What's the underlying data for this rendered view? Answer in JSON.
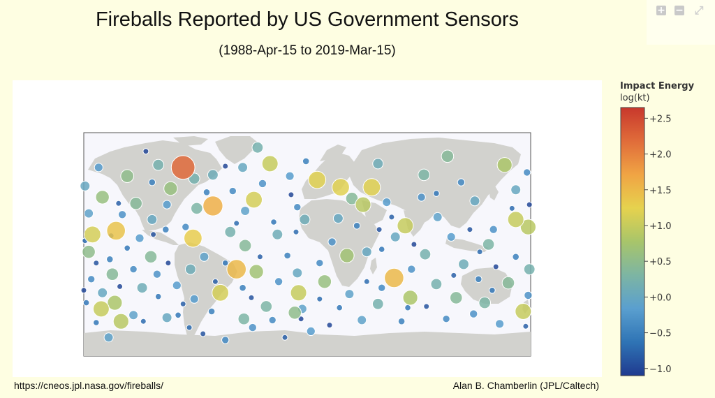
{
  "header": {
    "title": "Fireballs Reported by US Government Sensors",
    "subtitle": "(1988-Apr-15 to 2019-Mar-15)"
  },
  "toolbar": {
    "zoom_in_icon": "plus-square-icon",
    "zoom_out_icon": "minus-square-icon",
    "reset_icon": "expand-arrows-icon"
  },
  "colorbar": {
    "title": "Impact Energy",
    "unit": "log(kt)",
    "ticks": [
      "+2.5",
      "+2.0",
      "+1.5",
      "+1.0",
      "+0.5",
      "+0.0",
      "−0.5",
      "−1.0"
    ],
    "tick_values": [
      2.5,
      2.0,
      1.5,
      1.0,
      0.5,
      0.0,
      -0.5,
      -1.0
    ],
    "range": [
      -1.1,
      2.65
    ],
    "colors": [
      "#1f3a8f",
      "#2f74b5",
      "#5a9fcf",
      "#7db5a3",
      "#a8c56a",
      "#e6d24e",
      "#f0a444",
      "#e06c3a",
      "#c8382c"
    ]
  },
  "map": {
    "ocean_color": "#f7f7fc",
    "land_color": "#d2d2ce",
    "fireballs": [
      {
        "lon": -100,
        "lat": 62,
        "e": 2.2
      },
      {
        "lon": -76,
        "lat": 31,
        "e": 1.6
      },
      {
        "lon": -57,
        "lat": -20,
        "e": 1.5
      },
      {
        "lon": 70,
        "lat": -27,
        "e": 1.5
      },
      {
        "lon": -154,
        "lat": 11,
        "e": 1.4
      },
      {
        "lon": -92,
        "lat": 5,
        "e": 1.3
      },
      {
        "lon": -173,
        "lat": 8,
        "e": 1.1
      },
      {
        "lon": -43,
        "lat": 36,
        "e": 1.1
      },
      {
        "lon": -7,
        "lat": -39,
        "e": 1.0
      },
      {
        "lon": 174,
        "lat": -54,
        "e": 1.0
      },
      {
        "lon": 27,
        "lat": 46,
        "e": 1.2
      },
      {
        "lon": -70,
        "lat": -39,
        "e": 1.1
      },
      {
        "lon": 168,
        "lat": 20,
        "e": 1.0
      },
      {
        "lon": 52,
        "lat": 46,
        "e": 1.2
      },
      {
        "lon": -30,
        "lat": 65,
        "e": 1.0
      },
      {
        "lon": -150,
        "lat": -62,
        "e": 0.9
      },
      {
        "lon": 159,
        "lat": 64,
        "e": 0.8
      },
      {
        "lon": 8,
        "lat": 52,
        "e": 1.2
      },
      {
        "lon": -166,
        "lat": -52,
        "e": 1.0
      },
      {
        "lon": 14,
        "lat": -30,
        "e": 0.6
      },
      {
        "lon": 45,
        "lat": 32,
        "e": 0.9
      },
      {
        "lon": 79,
        "lat": 15,
        "e": 1.0
      },
      {
        "lon": -110,
        "lat": 45,
        "e": 0.6
      },
      {
        "lon": -10,
        "lat": -55,
        "e": 0.5
      },
      {
        "lon": 83,
        "lat": -43,
        "e": 0.8
      },
      {
        "lon": -155,
        "lat": -47,
        "e": 0.8
      },
      {
        "lon": 32,
        "lat": -9,
        "e": 0.7
      },
      {
        "lon": -41,
        "lat": -22,
        "e": 0.7
      },
      {
        "lon": 178,
        "lat": 14,
        "e": 0.9
      },
      {
        "lon": -165,
        "lat": 38,
        "e": 0.6
      },
      {
        "lon": -145,
        "lat": 55,
        "e": 0.5
      },
      {
        "lon": 113,
        "lat": 71,
        "e": 0.4
      },
      {
        "lon": 146,
        "lat": 0,
        "e": 0.3
      },
      {
        "lon": -89,
        "lat": 29,
        "e": 0.3
      },
      {
        "lon": -176,
        "lat": -6,
        "e": 0.5
      },
      {
        "lon": 162,
        "lat": -31,
        "e": 0.4
      },
      {
        "lon": -51,
        "lat": -60,
        "e": 0.3
      },
      {
        "lon": 36,
        "lat": 37,
        "e": 0.4
      },
      {
        "lon": -138,
        "lat": 33,
        "e": 0.4
      },
      {
        "lon": -50,
        "lat": -1,
        "e": 0.4
      },
      {
        "lon": 120,
        "lat": -43,
        "e": 0.4
      },
      {
        "lon": 94,
        "lat": 56,
        "e": 0.3
      },
      {
        "lon": -126,
        "lat": -10,
        "e": 0.4
      },
      {
        "lon": -33,
        "lat": -50,
        "e": 0.3
      },
      {
        "lon": -157,
        "lat": -24,
        "e": 0.4
      },
      {
        "lon": 143,
        "lat": -47,
        "e": 0.3
      },
      {
        "lon": 95,
        "lat": -8,
        "e": 0.2
      },
      {
        "lon": -62,
        "lat": 10,
        "e": 0.2
      },
      {
        "lon": 57,
        "lat": -48,
        "e": 0.2
      },
      {
        "lon": 104,
        "lat": -32,
        "e": 0.2
      },
      {
        "lon": -120,
        "lat": 64,
        "e": 0.2
      },
      {
        "lon": -91,
        "lat": 53,
        "e": 0.2
      },
      {
        "lon": -2,
        "lat": 20,
        "e": 0.1
      },
      {
        "lon": -40,
        "lat": 78,
        "e": 0.2
      },
      {
        "lon": -76,
        "lat": 56,
        "e": 0.1
      },
      {
        "lon": 57,
        "lat": 65,
        "e": 0.1
      },
      {
        "lon": 179,
        "lat": -20,
        "e": 0.2
      },
      {
        "lon": -94,
        "lat": -20,
        "e": 0.1
      },
      {
        "lon": -133,
        "lat": -35,
        "e": 0.1
      },
      {
        "lon": -24,
        "lat": 8,
        "e": 0.1
      },
      {
        "lon": 126,
        "lat": -16,
        "e": 0.1
      },
      {
        "lon": 25,
        "lat": 21,
        "e": 0.0
      },
      {
        "lon": -125,
        "lat": 20,
        "e": 0.0
      },
      {
        "lon": -165,
        "lat": -39,
        "e": 0.0
      },
      {
        "lon": -113,
        "lat": -59,
        "e": 0.0
      },
      {
        "lon": -8,
        "lat": -23,
        "e": 0.0
      },
      {
        "lon": 71,
        "lat": 6,
        "e": 0.0
      },
      {
        "lon": 135,
        "lat": 35,
        "e": 0.0
      },
      {
        "lon": -52,
        "lat": 62,
        "e": 0.0
      },
      {
        "lon": 168,
        "lat": 44,
        "e": 0.0
      },
      {
        "lon": -179,
        "lat": 47,
        "e": 0.0
      },
      {
        "lon": 48,
        "lat": -6,
        "e": 0.0
      },
      {
        "lon": -4,
        "lat": -52,
        "e": -0.1
      },
      {
        "lon": -140,
        "lat": -57,
        "e": -0.1
      },
      {
        "lon": -83,
        "lat": -10,
        "e": -0.1
      },
      {
        "lon": 105,
        "lat": 22,
        "e": -0.1
      },
      {
        "lon": -160,
        "lat": -75,
        "e": -0.1
      },
      {
        "lon": 34,
        "lat": -40,
        "e": -0.1
      },
      {
        "lon": -176,
        "lat": 25,
        "e": -0.1
      },
      {
        "lon": -50,
        "lat": 27,
        "e": -0.1
      },
      {
        "lon": 44,
        "lat": -61,
        "e": -0.1
      },
      {
        "lon": -113,
        "lat": 32,
        "e": -0.2
      },
      {
        "lon": 116,
        "lat": 6,
        "e": -0.2
      },
      {
        "lon": -105,
        "lat": -33,
        "e": -0.2
      },
      {
        "lon": 3,
        "lat": -70,
        "e": -0.2
      },
      {
        "lon": 155,
        "lat": -64,
        "e": -0.2
      },
      {
        "lon": 64,
        "lat": 34,
        "e": -0.2
      },
      {
        "lon": -135,
        "lat": 5,
        "e": -0.2
      },
      {
        "lon": -14,
        "lat": 55,
        "e": -0.2
      },
      {
        "lon": -168,
        "lat": 62,
        "e": -0.2
      },
      {
        "lon": -91,
        "lat": -44,
        "e": -0.2
      },
      {
        "lon": -23,
        "lat": -30,
        "e": -0.3
      },
      {
        "lon": 178,
        "lat": -41,
        "e": -0.3
      },
      {
        "lon": -44,
        "lat": -67,
        "e": -0.3
      },
      {
        "lon": 84,
        "lat": -20,
        "e": -0.3
      },
      {
        "lon": -121,
        "lat": -24,
        "e": -0.3
      },
      {
        "lon": 20,
        "lat": 2,
        "e": -0.3
      },
      {
        "lon": -149,
        "lat": 24,
        "e": -0.3
      },
      {
        "lon": 134,
        "lat": -56,
        "e": -0.3
      },
      {
        "lon": 150,
        "lat": 12,
        "e": -0.3
      },
      {
        "lon": -36,
        "lat": 49,
        "e": -0.3
      },
      {
        "lon": 92,
        "lat": 38,
        "e": -0.3
      },
      {
        "lon": -66,
        "lat": -77,
        "e": -0.4
      },
      {
        "lon": -8,
        "lat": 30,
        "e": -0.4
      },
      {
        "lon": -174,
        "lat": -28,
        "e": -0.4
      },
      {
        "lon": 60,
        "lat": -35,
        "e": -0.4
      },
      {
        "lon": -98,
        "lat": 14,
        "e": -0.4
      },
      {
        "lon": 124,
        "lat": 50,
        "e": -0.4
      },
      {
        "lon": -60,
        "lat": 43,
        "e": -0.4
      },
      {
        "lon": -140,
        "lat": -20,
        "e": -0.4
      },
      {
        "lon": 10,
        "lat": -15,
        "e": -0.4
      },
      {
        "lon": 177,
        "lat": 58,
        "e": -0.4
      },
      {
        "lon": -28,
        "lat": -61,
        "e": -0.4
      },
      {
        "lon": 112,
        "lat": -60,
        "e": -0.4
      },
      {
        "lon": -125,
        "lat": 50,
        "e": -0.5
      },
      {
        "lon": 40,
        "lat": 15,
        "e": -0.5
      },
      {
        "lon": -77,
        "lat": -54,
        "e": -0.5
      },
      {
        "lon": -159,
        "lat": -12,
        "e": -0.5
      },
      {
        "lon": 76,
        "lat": -62,
        "e": -0.5
      },
      {
        "lon": -16,
        "lat": -9,
        "e": -0.5
      },
      {
        "lon": 168,
        "lat": -10,
        "e": -0.5
      },
      {
        "lon": -114,
        "lat": 12,
        "e": -0.5
      },
      {
        "lon": -81,
        "lat": 42,
        "e": -0.5
      },
      {
        "lon": 138,
        "lat": -28,
        "e": -0.5
      },
      {
        "lon": -1,
        "lat": 67,
        "e": -0.5
      },
      {
        "lon": -52,
        "lat": -35,
        "e": -0.5
      },
      {
        "lon": -170,
        "lat": -63,
        "e": -0.6
      },
      {
        "lon": 60,
        "lat": -4,
        "e": -0.6
      },
      {
        "lon": -104,
        "lat": -57,
        "e": -0.6
      },
      {
        "lon": 149,
        "lat": -37,
        "e": -0.6
      },
      {
        "lon": -27,
        "lat": 18,
        "e": -0.6
      },
      {
        "lon": 104,
        "lat": 41,
        "e": -0.6
      },
      {
        "lon": -145,
        "lat": -3,
        "e": -0.6
      },
      {
        "lon": 26,
        "lat": -51,
        "e": -0.6
      },
      {
        "lon": -178,
        "lat": -47,
        "e": -0.6
      },
      {
        "lon": -66,
        "lat": -15,
        "e": -0.6
      },
      {
        "lon": 81,
        "lat": -51,
        "e": -0.6
      },
      {
        "lon": -120,
        "lat": -42,
        "e": -0.6
      },
      {
        "lon": -9,
        "lat": 10,
        "e": -0.7
      },
      {
        "lon": 139,
        "lat": -6,
        "e": -0.7
      },
      {
        "lon": -95,
        "lat": -67,
        "e": -0.7
      },
      {
        "lon": 165,
        "lat": 29,
        "e": -0.7
      },
      {
        "lon": -57,
        "lat": 17,
        "e": -0.7
      },
      {
        "lon": 48,
        "lat": -30,
        "e": -0.7
      },
      {
        "lon": -132,
        "lat": -62,
        "e": -0.7
      },
      {
        "lon": -179,
        "lat": 3,
        "e": -0.7
      },
      {
        "lon": 10,
        "lat": -44,
        "e": -0.7
      },
      {
        "lon": -74,
        "lat": -30,
        "e": -0.8
      },
      {
        "lon": 118,
        "lat": -25,
        "e": -0.8
      },
      {
        "lon": -152,
        "lat": 33,
        "e": -0.8
      },
      {
        "lon": -38,
        "lat": -10,
        "e": -0.8
      },
      {
        "lon": 68,
        "lat": 22,
        "e": -0.8
      },
      {
        "lon": -100,
        "lat": -48,
        "e": -0.8
      },
      {
        "lon": 176,
        "lat": -66,
        "e": -0.8
      },
      {
        "lon": -18,
        "lat": -75,
        "e": -0.8
      },
      {
        "lon": -158,
        "lat": 7,
        "e": -0.8
      },
      {
        "lon": -124,
        "lat": 8,
        "e": -0.9
      },
      {
        "lon": 96,
        "lat": -50,
        "e": -0.9
      },
      {
        "lon": -45,
        "lat": -43,
        "e": -0.9
      },
      {
        "lon": 58,
        "lat": 12,
        "e": -0.9
      },
      {
        "lon": -170,
        "lat": -15,
        "e": -0.9
      },
      {
        "lon": 131,
        "lat": 12,
        "e": -0.9
      },
      {
        "lon": -84,
        "lat": -72,
        "e": -0.9
      },
      {
        "lon": -5,
        "lat": -60,
        "e": -1.0
      },
      {
        "lon": 152,
        "lat": -18,
        "e": -1.0
      },
      {
        "lon": -130,
        "lat": 75,
        "e": -1.0
      },
      {
        "lon": 18,
        "lat": -65,
        "e": -1.0
      },
      {
        "lon": -66,
        "lat": 63,
        "e": -1.0
      },
      {
        "lon": -180,
        "lat": -37,
        "e": -1.0
      },
      {
        "lon": 179,
        "lat": 32,
        "e": -1.0
      },
      {
        "lon": -13,
        "lat": 40,
        "e": -1.0
      },
      {
        "lon": -112,
        "lat": -15,
        "e": -1.0
      },
      {
        "lon": 86,
        "lat": 0,
        "e": -1.0
      },
      {
        "lon": -151,
        "lat": -34,
        "e": -1.0
      }
    ]
  },
  "footer": {
    "left": "https://cneos.jpl.nasa.gov/fireballs/",
    "right": "Alan B. Chamberlin (JPL/Caltech)"
  }
}
